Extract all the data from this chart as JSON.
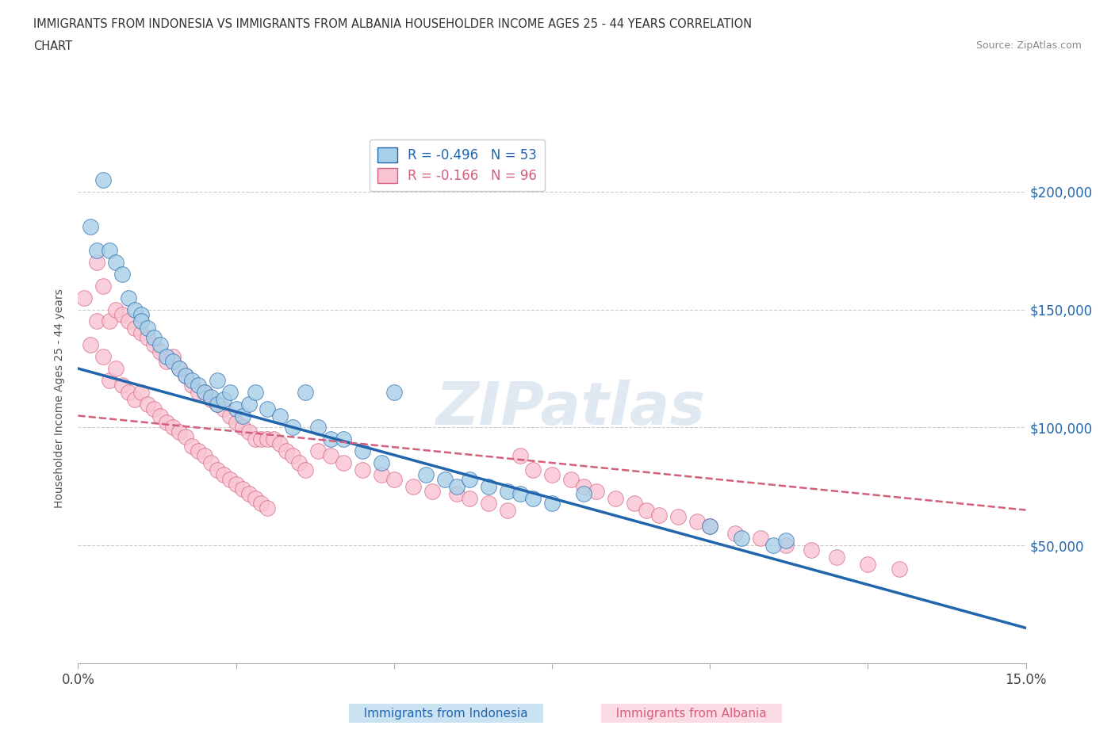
{
  "title_line1": "IMMIGRANTS FROM INDONESIA VS IMMIGRANTS FROM ALBANIA HOUSEHOLDER INCOME AGES 25 - 44 YEARS CORRELATION",
  "title_line2": "CHART",
  "source": "Source: ZipAtlas.com",
  "ylabel": "Householder Income Ages 25 - 44 years",
  "xlim": [
    0.0,
    0.15
  ],
  "ylim": [
    0,
    225000
  ],
  "xticks": [
    0.0,
    0.025,
    0.05,
    0.075,
    0.1,
    0.125,
    0.15
  ],
  "ytick_positions": [
    50000,
    100000,
    150000,
    200000
  ],
  "ytick_labels": [
    "$50,000",
    "$100,000",
    "$150,000",
    "$200,000"
  ],
  "color_indonesia": "#a8cfe8",
  "color_albania": "#f9c4d2",
  "line_color_indonesia": "#2166ac",
  "line_color_albania": "#d45f7a",
  "R_indonesia": -0.496,
  "N_indonesia": 53,
  "R_albania": -0.166,
  "N_albania": 96,
  "watermark": "ZIPatlas",
  "indonesia_x": [
    0.002,
    0.003,
    0.004,
    0.005,
    0.006,
    0.007,
    0.008,
    0.009,
    0.01,
    0.01,
    0.011,
    0.012,
    0.013,
    0.014,
    0.015,
    0.016,
    0.017,
    0.018,
    0.019,
    0.02,
    0.021,
    0.022,
    0.022,
    0.023,
    0.024,
    0.025,
    0.026,
    0.027,
    0.028,
    0.03,
    0.032,
    0.034,
    0.036,
    0.038,
    0.04,
    0.042,
    0.045,
    0.048,
    0.05,
    0.055,
    0.058,
    0.06,
    0.062,
    0.065,
    0.068,
    0.07,
    0.072,
    0.075,
    0.08,
    0.1,
    0.105,
    0.11,
    0.112
  ],
  "indonesia_y": [
    185000,
    175000,
    205000,
    175000,
    170000,
    165000,
    155000,
    150000,
    148000,
    145000,
    142000,
    138000,
    135000,
    130000,
    128000,
    125000,
    122000,
    120000,
    118000,
    115000,
    113000,
    120000,
    110000,
    112000,
    115000,
    108000,
    105000,
    110000,
    115000,
    108000,
    105000,
    100000,
    115000,
    100000,
    95000,
    95000,
    90000,
    85000,
    115000,
    80000,
    78000,
    75000,
    78000,
    75000,
    73000,
    72000,
    70000,
    68000,
    72000,
    58000,
    53000,
    50000,
    52000
  ],
  "albania_x": [
    0.001,
    0.002,
    0.003,
    0.003,
    0.004,
    0.004,
    0.005,
    0.005,
    0.006,
    0.006,
    0.007,
    0.007,
    0.008,
    0.008,
    0.009,
    0.009,
    0.01,
    0.01,
    0.011,
    0.011,
    0.012,
    0.012,
    0.013,
    0.013,
    0.014,
    0.014,
    0.015,
    0.015,
    0.016,
    0.016,
    0.017,
    0.017,
    0.018,
    0.018,
    0.019,
    0.019,
    0.02,
    0.02,
    0.021,
    0.021,
    0.022,
    0.022,
    0.023,
    0.023,
    0.024,
    0.024,
    0.025,
    0.025,
    0.026,
    0.026,
    0.027,
    0.027,
    0.028,
    0.028,
    0.029,
    0.029,
    0.03,
    0.03,
    0.031,
    0.032,
    0.033,
    0.034,
    0.035,
    0.036,
    0.038,
    0.04,
    0.042,
    0.045,
    0.048,
    0.05,
    0.053,
    0.056,
    0.06,
    0.062,
    0.065,
    0.068,
    0.07,
    0.072,
    0.075,
    0.078,
    0.08,
    0.082,
    0.085,
    0.088,
    0.09,
    0.092,
    0.095,
    0.098,
    0.1,
    0.104,
    0.108,
    0.112,
    0.116,
    0.12,
    0.125,
    0.13
  ],
  "albania_y": [
    155000,
    135000,
    170000,
    145000,
    160000,
    130000,
    145000,
    120000,
    150000,
    125000,
    148000,
    118000,
    145000,
    115000,
    142000,
    112000,
    140000,
    115000,
    138000,
    110000,
    135000,
    108000,
    132000,
    105000,
    128000,
    102000,
    130000,
    100000,
    125000,
    98000,
    122000,
    96000,
    118000,
    92000,
    115000,
    90000,
    115000,
    88000,
    112000,
    85000,
    110000,
    82000,
    108000,
    80000,
    105000,
    78000,
    102000,
    76000,
    100000,
    74000,
    98000,
    72000,
    95000,
    70000,
    95000,
    68000,
    95000,
    66000,
    95000,
    93000,
    90000,
    88000,
    85000,
    82000,
    90000,
    88000,
    85000,
    82000,
    80000,
    78000,
    75000,
    73000,
    72000,
    70000,
    68000,
    65000,
    88000,
    82000,
    80000,
    78000,
    75000,
    73000,
    70000,
    68000,
    65000,
    63000,
    62000,
    60000,
    58000,
    55000,
    53000,
    50000,
    48000,
    45000,
    42000,
    40000
  ],
  "legend_label_indo": "Immigrants from Indonesia",
  "legend_label_alb": "Immigrants from Albania"
}
